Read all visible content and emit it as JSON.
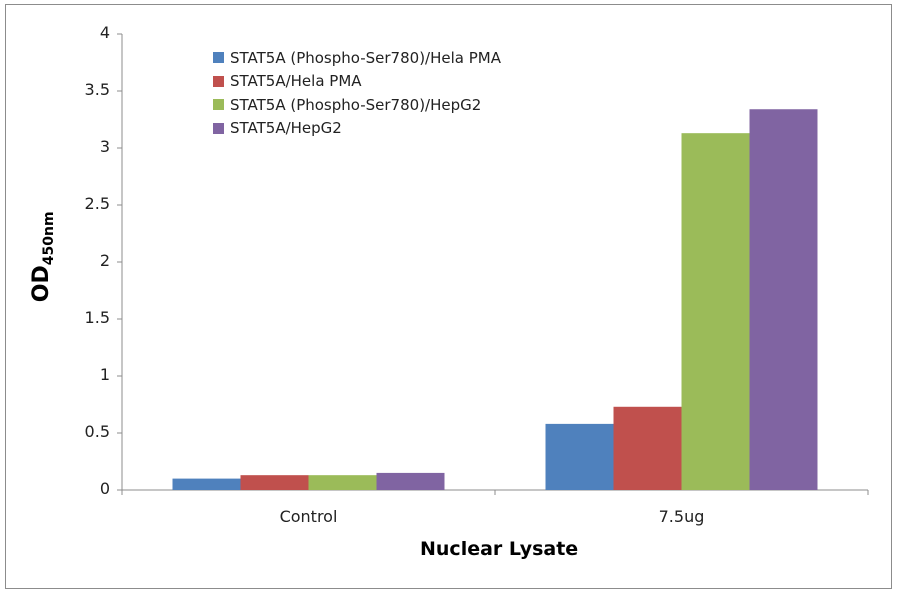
{
  "chart_data": {
    "type": "bar",
    "title": "",
    "xlabel": "Nuclear Lysate",
    "ylabel_main": "OD",
    "ylabel_sub": "450nm",
    "ylim": [
      0,
      4
    ],
    "yticks": [
      "0",
      "0.5",
      "1",
      "1.5",
      "2",
      "2.5",
      "3",
      "3.5",
      "4"
    ],
    "categories": [
      "Control",
      "7.5ug"
    ],
    "series": [
      {
        "name": "STAT5A (Phospho-Ser780)/Hela PMA",
        "color": "#4f81bd",
        "values": [
          0.1,
          0.58
        ]
      },
      {
        "name": "STAT5A/Hela PMA",
        "color": "#c0504d",
        "values": [
          0.13,
          0.73
        ]
      },
      {
        "name": "STAT5A (Phospho-Ser780)/HepG2",
        "color": "#9bbb59",
        "values": [
          0.13,
          3.13
        ]
      },
      {
        "name": "STAT5A/HepG2",
        "color": "#8064a2",
        "values": [
          0.15,
          3.34
        ]
      }
    ],
    "grid": false,
    "legend_position": "upper-left-inside"
  }
}
